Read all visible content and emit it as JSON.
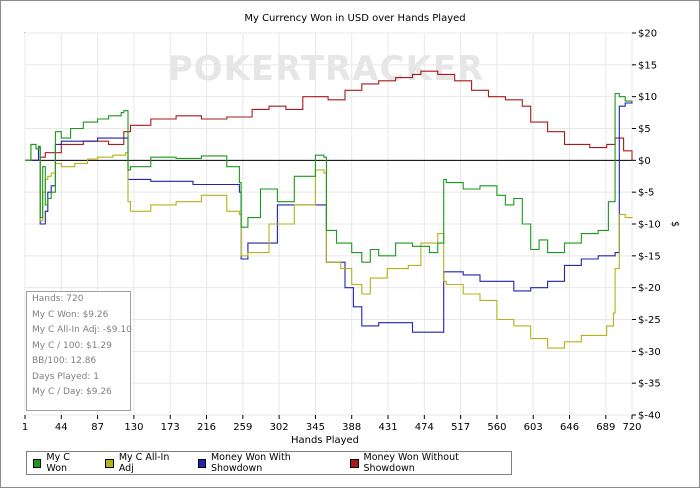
{
  "chart_data": {
    "type": "line",
    "title": "My Currency Won in USD over Hands Played",
    "xlabel": "Hands Played",
    "ylabel": "$",
    "xlim": [
      1,
      720
    ],
    "ylim": [
      -40,
      20
    ],
    "x_ticks": [
      "1",
      "44",
      "87",
      "130",
      "173",
      "216",
      "259",
      "302",
      "345",
      "388",
      "431",
      "474",
      "517",
      "560",
      "603",
      "646",
      "689",
      "720"
    ],
    "y_ticks": [
      "$20",
      "$15",
      "$10",
      "$5",
      "$0",
      "$-5",
      "$-10",
      "$-15",
      "$-20",
      "$-25",
      "$-30",
      "$-35",
      "$-40"
    ],
    "watermark": "POKERTRACKER",
    "colors": {
      "My C Won": "#1a9a1a",
      "My C All-In Adj": "#b3b31a",
      "Money Won With Showdown": "#2222b3",
      "Money Won Without Showdown": "#aa1a1a"
    },
    "series": [
      {
        "name": "My C Won",
        "x": [
          1,
          8,
          14,
          17,
          19,
          22,
          25,
          28,
          32,
          37,
          44,
          55,
          70,
          87,
          100,
          115,
          118,
          123,
          126,
          150,
          180,
          210,
          240,
          255,
          257,
          265,
          280,
          300,
          320,
          345,
          355,
          358,
          370,
          388,
          400,
          410,
          420,
          440,
          460,
          480,
          490,
          497,
          500,
          520,
          540,
          560,
          570,
          580,
          590,
          600,
          610,
          620,
          640,
          660,
          680,
          692,
          700,
          705,
          712,
          720
        ],
        "y": [
          0,
          2.5,
          1.8,
          2.2,
          -9,
          -1,
          -7,
          -6,
          -5,
          4.5,
          3.5,
          5,
          6,
          6.5,
          7,
          7.5,
          7.8,
          -1.5,
          -1,
          0.5,
          0.3,
          0.7,
          -1,
          -3.5,
          -10.5,
          -9,
          -4.5,
          -6.5,
          -2.5,
          0.8,
          0.5,
          -11,
          -13,
          -14.5,
          -16,
          -14,
          -15,
          -13,
          -13.5,
          -14.5,
          -13,
          -3,
          -3.5,
          -4.5,
          -4,
          -5.5,
          -7,
          -6,
          -10,
          -14,
          -12.5,
          -14.5,
          -13,
          -11.5,
          -11,
          -6.5,
          10.5,
          10,
          9.3,
          9.26
        ]
      },
      {
        "name": "My C All-In Adj",
        "x": [
          1,
          8,
          14,
          17,
          19,
          22,
          25,
          28,
          32,
          37,
          44,
          60,
          75,
          87,
          105,
          120,
          123,
          126,
          150,
          180,
          210,
          240,
          255,
          257,
          265,
          290,
          320,
          345,
          355,
          358,
          375,
          388,
          400,
          410,
          430,
          455,
          470,
          490,
          497,
          500,
          520,
          540,
          560,
          580,
          600,
          620,
          640,
          660,
          690,
          698,
          700,
          705,
          712,
          720
        ],
        "y": [
          0,
          2.5,
          1.8,
          2.2,
          -9.5,
          -5,
          -3,
          -2.5,
          -2,
          -0.5,
          -1,
          -0.5,
          0.2,
          0.5,
          0.8,
          1.2,
          -6.5,
          -8,
          -7,
          -6.5,
          -5.5,
          -8,
          -8.5,
          -15,
          -14.5,
          -10,
          -7,
          -1.5,
          -2,
          -16,
          -17,
          -19.5,
          -21,
          -18.5,
          -17,
          -16.5,
          -13,
          -11.5,
          -19,
          -19.5,
          -21,
          -22,
          -25,
          -26,
          -28,
          -29.5,
          -28.5,
          -27.5,
          -26,
          -24,
          -17,
          -8.5,
          -9,
          -9.1
        ]
      },
      {
        "name": "Money Won With Showdown",
        "x": [
          1,
          14,
          17,
          19,
          22,
          25,
          28,
          32,
          37,
          44,
          87,
          105,
          118,
          123,
          126,
          150,
          180,
          200,
          210,
          240,
          255,
          257,
          265,
          300,
          345,
          355,
          358,
          380,
          390,
          400,
          420,
          440,
          460,
          490,
          497,
          500,
          520,
          540,
          560,
          580,
          600,
          620,
          640,
          660,
          680,
          700,
          705,
          712,
          720
        ],
        "y": [
          0,
          0,
          2,
          -10,
          -10,
          -8,
          -5,
          -4,
          2.5,
          3,
          3.5,
          3.5,
          3.5,
          -3,
          -3,
          -3.3,
          -3.3,
          -3.8,
          -3.8,
          -3.8,
          -5,
          -15.5,
          -13,
          -7,
          -7,
          -7,
          -16,
          -20,
          -23,
          -26,
          -25.5,
          -25.5,
          -27,
          -27,
          -17.5,
          -17.5,
          -18,
          -19,
          -19,
          -20.5,
          -20,
          -19,
          -16.5,
          -15.5,
          -15,
          -14.5,
          8.5,
          9,
          9.26
        ]
      },
      {
        "name": "Money Won Without Showdown",
        "x": [
          1,
          14,
          19,
          25,
          44,
          70,
          100,
          118,
          126,
          150,
          180,
          210,
          240,
          270,
          290,
          310,
          330,
          360,
          380,
          400,
          420,
          440,
          460,
          470,
          490,
          510,
          530,
          550,
          570,
          590,
          600,
          620,
          640,
          660,
          670,
          690,
          700,
          710,
          720
        ],
        "y": [
          0,
          0,
          0.5,
          1.2,
          2.5,
          3,
          2.5,
          4.5,
          5.5,
          6.5,
          7,
          6.5,
          6.8,
          8,
          8.5,
          8,
          10,
          9.5,
          11,
          12,
          12.5,
          13,
          13.5,
          14,
          13.5,
          12.5,
          11,
          10,
          9.5,
          8.5,
          6,
          4.5,
          2.5,
          2.5,
          2,
          2.5,
          3.5,
          1.5,
          0
        ]
      }
    ]
  },
  "stats": [
    "Hands: 720",
    "My C Won: $9.26",
    "My C All-In Adj: -$9.10",
    "My C / 100: $1.29",
    "BB/100: 12.86",
    "Days Played: 1",
    "My C / Day: $9.26"
  ]
}
